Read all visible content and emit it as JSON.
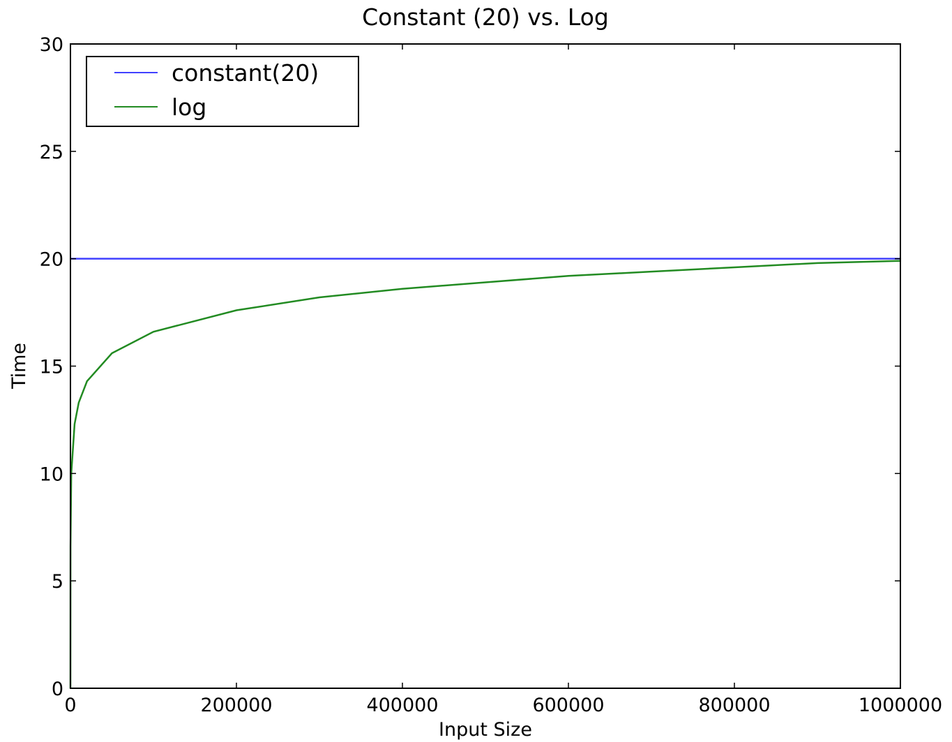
{
  "chart_data": {
    "type": "line",
    "title": "Constant (20) vs. Log",
    "xlabel": "Input Size",
    "ylabel": "Time",
    "xlim": [
      0,
      1000000
    ],
    "ylim": [
      0,
      30
    ],
    "x_ticks": [
      0,
      200000,
      400000,
      600000,
      800000,
      1000000
    ],
    "y_ticks": [
      0,
      5,
      10,
      15,
      20,
      25,
      30
    ],
    "grid": false,
    "legend_position": "upper left",
    "series": [
      {
        "name": "constant(20)",
        "color": "#4040ff",
        "x": [
          0,
          1000000
        ],
        "y": [
          20,
          20
        ]
      },
      {
        "name": "log",
        "color": "#228b22",
        "x": [
          1,
          100,
          1000,
          5000,
          10000,
          20000,
          50000,
          100000,
          200000,
          300000,
          400000,
          500000,
          600000,
          700000,
          800000,
          900000,
          1000000
        ],
        "y": [
          0,
          6.6,
          10.0,
          12.3,
          13.3,
          14.3,
          15.6,
          16.6,
          17.6,
          18.2,
          18.6,
          18.9,
          19.2,
          19.4,
          19.6,
          19.8,
          19.9
        ]
      }
    ]
  }
}
